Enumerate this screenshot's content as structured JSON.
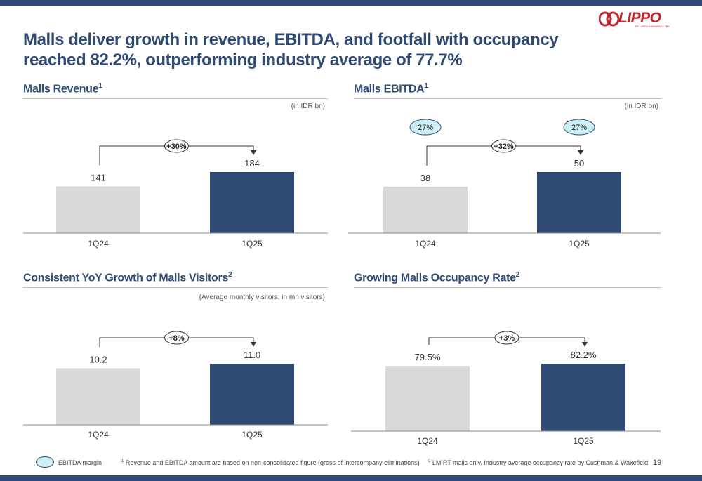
{
  "title": "Malls deliver growth in revenue, EBITDA, and footfall with occupancy reached 82.2%, outperforming industry average of 77.7%",
  "logo": {
    "name": "LIPPO",
    "subtitle": "PT LIPPO KARAWACI TBK"
  },
  "colors": {
    "prior": "#d9d9d9",
    "current": "#2f4a73",
    "accent": "#2f4a73",
    "margin_fill": "#cdeef5"
  },
  "panels": {
    "revenue": {
      "title": "Malls Revenue",
      "sup": "1",
      "unit": "(in IDR bn)"
    },
    "ebitda": {
      "title": "Malls EBITDA",
      "sup": "1",
      "unit": "(in IDR bn)"
    },
    "visitors": {
      "title": "Consistent YoY Growth of Malls Visitors",
      "sup": "2",
      "unit": "(Average monthly visitors; in mn visitors)"
    },
    "occupancy": {
      "title": "Growing Malls Occupancy Rate",
      "sup": "2",
      "unit": ""
    }
  },
  "chart_data": [
    {
      "type": "bar",
      "categories": [
        "1Q24",
        "1Q25"
      ],
      "values": [
        141,
        184
      ],
      "labels": [
        "141",
        "184"
      ],
      "growth": "+30%",
      "ylim": [
        0,
        300
      ]
    },
    {
      "type": "bar",
      "categories": [
        "1Q24",
        "1Q25"
      ],
      "values": [
        38,
        50
      ],
      "labels": [
        "38",
        "50"
      ],
      "growth": "+32%",
      "ebitda_margin": [
        "27%",
        "27%"
      ],
      "ylim": [
        0,
        80
      ]
    },
    {
      "type": "bar",
      "categories": [
        "1Q24",
        "1Q25"
      ],
      "values": [
        10.2,
        11.0
      ],
      "labels": [
        "10.2",
        "11.0"
      ],
      "growth": "+8%",
      "ylim": [
        0,
        16
      ]
    },
    {
      "type": "bar",
      "categories": [
        "1Q24",
        "1Q25"
      ],
      "values": [
        79.5,
        82.2
      ],
      "labels": [
        "79.5%",
        "82.2%"
      ],
      "growth": "+3%",
      "ylim": [
        0,
        120
      ]
    }
  ],
  "footer": {
    "legend_label": "EBITDA margin",
    "note1_sup": "1",
    "note1": "Revenue and EBITDA amount are based on non-consolidated figure (gross of intercompany eliminations)",
    "note2_sup": "2",
    "note2": "LMIRT malls only. Industry average occupancy rate by Cushman & Wakefield",
    "page": "19"
  }
}
